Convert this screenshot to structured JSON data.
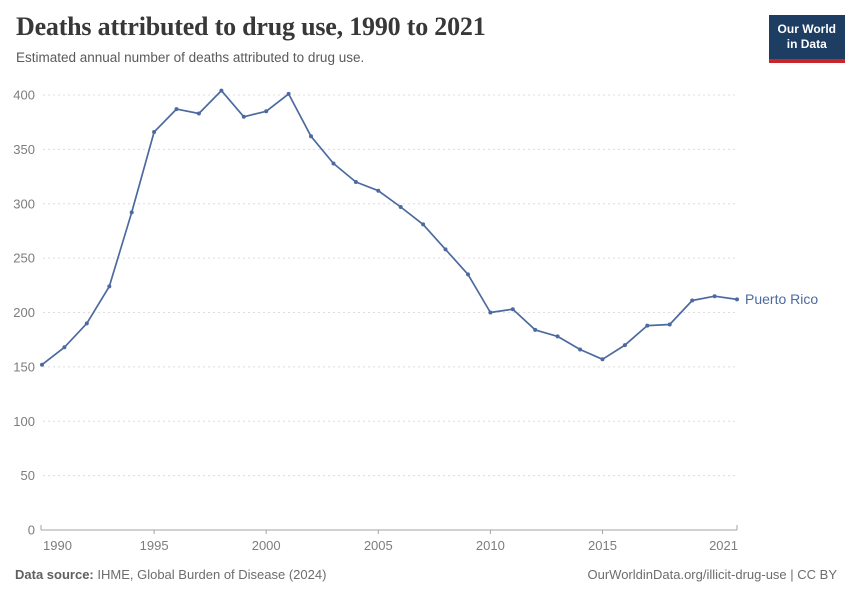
{
  "header": {
    "title": "Deaths attributed to drug use, 1990 to 2021",
    "subtitle": "Estimated annual number of deaths attributed to drug use."
  },
  "logo": {
    "line1": "Our World",
    "line2": "in Data"
  },
  "footer": {
    "source_label": "Data source:",
    "source_text": "IHME, Global Burden of Disease (2024)",
    "link": "OurWorldinData.org/illicit-drug-use | CC BY"
  },
  "colors": {
    "line": "#4c6a9f",
    "grid": "#dcdcdc",
    "axis": "#a3a3a3",
    "tick_text": "#7d7d7d",
    "logo_navy": "#1d3d63",
    "logo_red": "#c9262c"
  },
  "chart_data": {
    "type": "line",
    "title": "Deaths attributed to drug use, 1990 to 2021",
    "subtitle": "Estimated annual number of deaths attributed to drug use.",
    "x": [
      1990,
      1991,
      1992,
      1993,
      1994,
      1995,
      1996,
      1997,
      1998,
      1999,
      2000,
      2001,
      2002,
      2003,
      2004,
      2005,
      2006,
      2007,
      2008,
      2009,
      2010,
      2011,
      2012,
      2013,
      2014,
      2015,
      2016,
      2017,
      2018,
      2019,
      2020,
      2021
    ],
    "series": [
      {
        "name": "Puerto Rico",
        "color": "#4c6a9f",
        "values": [
          152,
          168,
          190,
          224,
          292,
          366,
          387,
          383,
          404,
          380,
          385,
          401,
          362,
          337,
          320,
          312,
          297,
          281,
          258,
          235,
          200,
          203,
          184,
          178,
          166,
          157,
          170,
          188,
          189,
          211,
          215,
          212
        ]
      }
    ],
    "xlabel": "",
    "ylabel": "",
    "ylim": [
      0,
      400
    ],
    "y_ticks": [
      0,
      50,
      100,
      150,
      200,
      250,
      300,
      350,
      400
    ],
    "x_ticks": [
      1990,
      1995,
      2000,
      2005,
      2010,
      2015,
      2021
    ],
    "grid": "dashed-horizontal",
    "legend": "entity-label-right"
  }
}
